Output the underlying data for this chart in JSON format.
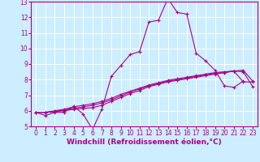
{
  "xlabel": "Windchill (Refroidissement éolien,°C)",
  "bg_color": "#cceeff",
  "grid_color": "#ffffff",
  "line_color": "#aa0088",
  "xlim": [
    -0.5,
    23.5
  ],
  "ylim": [
    5,
    13
  ],
  "xticks": [
    0,
    1,
    2,
    3,
    4,
    5,
    6,
    7,
    8,
    9,
    10,
    11,
    12,
    13,
    14,
    15,
    16,
    17,
    18,
    19,
    20,
    21,
    22,
    23
  ],
  "yticks": [
    5,
    6,
    7,
    8,
    9,
    10,
    11,
    12,
    13
  ],
  "series1_x": [
    0,
    1,
    2,
    3,
    4,
    5,
    6,
    7,
    8,
    9,
    10,
    11,
    12,
    13,
    14,
    15,
    16,
    17,
    18,
    19,
    20,
    21,
    22
  ],
  "series1_y": [
    5.9,
    5.7,
    5.9,
    5.9,
    6.3,
    5.8,
    4.8,
    6.1,
    8.2,
    8.9,
    9.6,
    9.8,
    11.7,
    11.8,
    13.2,
    12.3,
    12.2,
    9.7,
    9.2,
    8.6,
    7.6,
    7.5,
    7.9
  ],
  "series2_x": [
    0,
    1,
    2,
    3,
    4,
    5,
    6,
    7,
    8,
    9,
    10,
    11,
    12,
    13,
    14,
    15,
    16,
    17,
    18,
    19,
    20,
    21,
    22,
    23
  ],
  "series2_y": [
    5.9,
    5.9,
    5.95,
    6.0,
    6.1,
    6.15,
    6.2,
    6.35,
    6.6,
    6.85,
    7.1,
    7.3,
    7.55,
    7.7,
    7.85,
    7.95,
    8.05,
    8.15,
    8.25,
    8.35,
    8.45,
    8.55,
    8.6,
    7.9
  ],
  "series3_x": [
    0,
    1,
    2,
    3,
    4,
    5,
    6,
    7,
    8,
    9,
    10,
    11,
    12,
    13,
    14,
    15,
    16,
    17,
    18,
    19,
    20,
    21,
    22,
    23
  ],
  "series3_y": [
    5.9,
    5.9,
    5.95,
    6.05,
    6.15,
    6.25,
    6.35,
    6.5,
    6.7,
    6.95,
    7.2,
    7.4,
    7.6,
    7.75,
    7.9,
    8.0,
    8.1,
    8.2,
    8.3,
    8.4,
    8.45,
    8.55,
    8.5,
    7.55
  ],
  "series4_x": [
    0,
    1,
    2,
    3,
    4,
    5,
    6,
    7,
    8,
    9,
    10,
    11,
    12,
    13,
    14,
    15,
    16,
    17,
    18,
    19,
    20,
    21,
    22,
    23
  ],
  "series4_y": [
    5.9,
    5.9,
    6.0,
    6.1,
    6.25,
    6.35,
    6.45,
    6.6,
    6.8,
    7.05,
    7.25,
    7.45,
    7.65,
    7.8,
    7.95,
    8.05,
    8.15,
    8.25,
    8.35,
    8.45,
    8.5,
    8.55,
    7.85,
    7.85
  ],
  "tick_fontsize": 5.5,
  "label_fontsize": 6.5
}
